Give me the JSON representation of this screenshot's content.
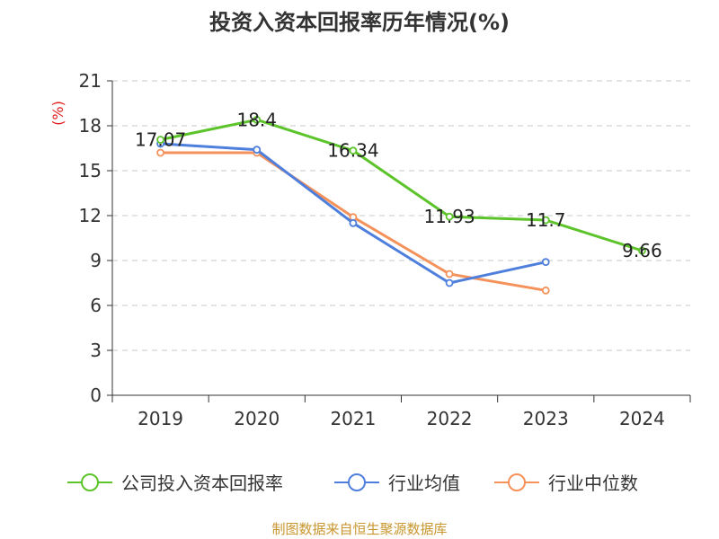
{
  "chart_data": {
    "type": "line",
    "title": "投资入资本回报率历年情况(%)",
    "unit_label": "(%)",
    "categories": [
      "2019",
      "2020",
      "2021",
      "2022",
      "2023",
      "2024"
    ],
    "ylim": [
      0,
      21
    ],
    "yticks": [
      0,
      3,
      6,
      9,
      12,
      15,
      18,
      21
    ],
    "grid": true,
    "legend_position": "bottom",
    "series": [
      {
        "name": "公司投入资本回报率",
        "color": "#5cc42a",
        "values": [
          17.07,
          18.4,
          16.34,
          11.93,
          11.7,
          9.66
        ],
        "labels": [
          "17.07",
          "18.4",
          "16.34",
          "11.93",
          "11.7",
          "9.66"
        ]
      },
      {
        "name": "行业均值",
        "color": "#4f7fdc",
        "values": [
          16.8,
          16.4,
          11.5,
          7.5,
          8.9,
          null
        ]
      },
      {
        "name": "行业中位数",
        "color": "#f5915a",
        "values": [
          16.2,
          16.2,
          11.9,
          8.1,
          7.0,
          null
        ]
      }
    ],
    "source": "制图数据来自恒生聚源数据库"
  }
}
